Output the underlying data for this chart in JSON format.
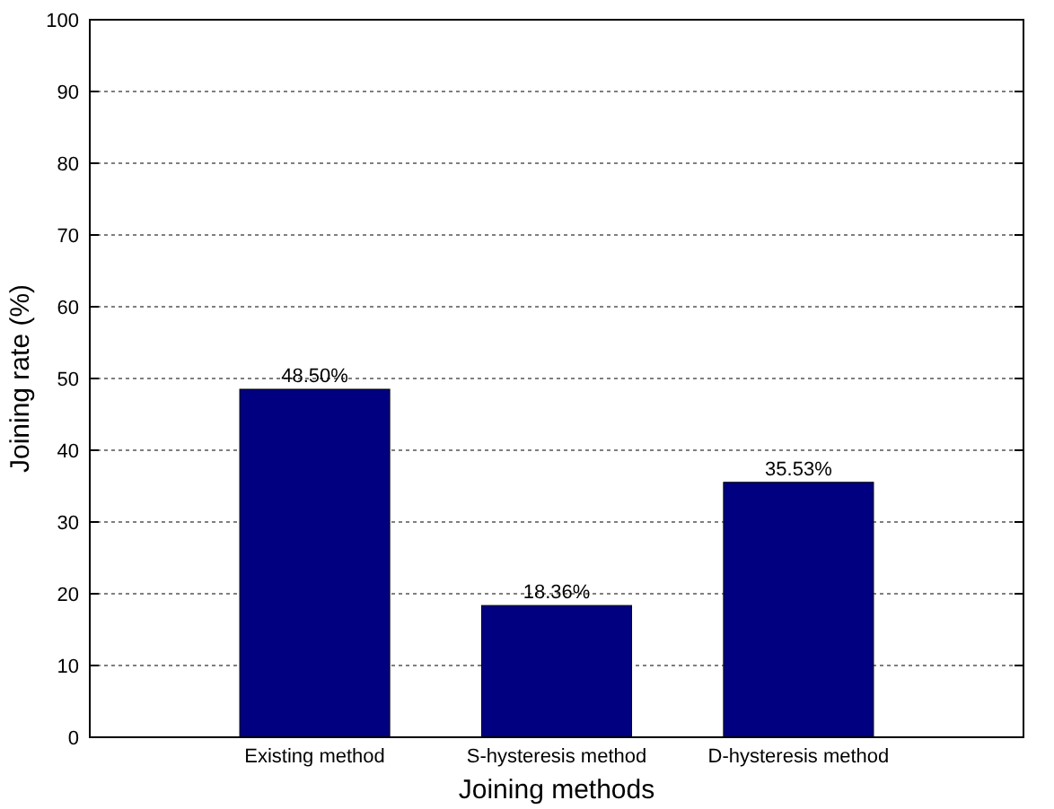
{
  "chart_data": {
    "type": "bar",
    "xlabel": "Joining methods",
    "ylabel": "Joining rate (%)",
    "categories": [
      "Existing method",
      "S-hysteresis method",
      "D-hysteresis method"
    ],
    "values": [
      48.5,
      18.36,
      35.53
    ],
    "color": "#000080",
    "value_labels": [
      "48.50%",
      "18.36%",
      "35.53%"
    ],
    "ylim": [
      0,
      100
    ],
    "yticks": [
      0,
      10,
      20,
      30,
      40,
      50,
      60,
      70,
      80,
      90,
      100
    ],
    "grid": "y"
  }
}
